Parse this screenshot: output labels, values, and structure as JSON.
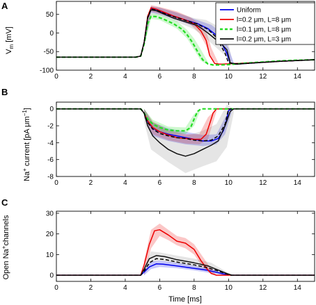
{
  "chart_data": [
    {
      "type": "line",
      "panel_label": "A",
      "ylabel": "V",
      "ylabel_sub": "m",
      "ylabel_unit": " [mV]",
      "xlim": [
        0,
        15
      ],
      "ylim": [
        -100,
        85
      ],
      "xticks": [
        "0",
        "2",
        "4",
        "6",
        "8",
        "10",
        "12",
        "14"
      ],
      "yticks": [
        "-100",
        "-50",
        "0",
        "50"
      ],
      "legend": [
        {
          "name": "Uniform"
        },
        {
          "name": "l=0.2 μm, L=8 μm"
        },
        {
          "name": "l=0.1 μm, L=8 μm"
        },
        {
          "name": "l=0.2 μm, L=3 μm"
        }
      ],
      "series": [
        {
          "name": "Uniform",
          "color": "#0000ee",
          "style": "solid",
          "x": [
            0,
            4.6,
            4.9,
            5.1,
            5.3,
            5.5,
            5.8,
            6.2,
            6.8,
            7.5,
            8.2,
            8.8,
            9.4,
            9.9,
            10.1,
            10.4,
            11,
            12,
            13,
            14,
            15
          ],
          "y": [
            -65,
            -65,
            -62,
            -25,
            40,
            66,
            63,
            55,
            45,
            35,
            25,
            12,
            -10,
            -55,
            -82,
            -84,
            -82,
            -79,
            -76,
            -74,
            -72
          ]
        },
        {
          "name": "l=0.2 μm, L=8 μm",
          "color": "#ee0000",
          "style": "solid",
          "x": [
            0,
            4.6,
            4.9,
            5.1,
            5.3,
            5.5,
            5.8,
            6.2,
            6.8,
            7.5,
            8.0,
            8.4,
            8.7,
            8.9,
            9.2,
            9.5,
            10,
            11,
            12,
            13,
            14,
            15
          ],
          "y": [
            -65,
            -65,
            -62,
            -25,
            45,
            68,
            64,
            57,
            46,
            35,
            25,
            5,
            -20,
            -60,
            -82,
            -84,
            -83,
            -81,
            -79,
            -76,
            -74,
            -72
          ]
        },
        {
          "name": "l=0.1 μm, L=8 μm",
          "color": "#22dd22",
          "style": "dashed",
          "x": [
            0,
            4.6,
            4.9,
            5.1,
            5.3,
            5.5,
            5.8,
            6.2,
            6.8,
            7.3,
            7.6,
            7.9,
            8.2,
            8.5,
            8.8,
            9.1,
            9.5,
            10,
            11,
            12,
            13,
            14,
            15
          ],
          "y": [
            -65,
            -65,
            -62,
            -30,
            25,
            45,
            44,
            38,
            25,
            10,
            -5,
            -25,
            -50,
            -72,
            -83,
            -86,
            -86,
            -85,
            -81,
            -78,
            -75,
            -73,
            -72
          ]
        },
        {
          "name": "l=0.2 μm, L=3 μm",
          "color": "#111111",
          "style": "solid",
          "x": [
            0,
            4.6,
            4.9,
            5.1,
            5.3,
            5.5,
            5.8,
            6.2,
            6.8,
            7.5,
            8.2,
            8.8,
            9.2,
            9.6,
            9.9,
            10.1,
            10.5,
            11,
            12,
            13,
            14,
            15
          ],
          "y": [
            -65,
            -65,
            -62,
            -25,
            40,
            62,
            60,
            52,
            40,
            30,
            20,
            0,
            -15,
            -30,
            -45,
            -80,
            -84,
            -82,
            -79,
            -76,
            -74,
            -72
          ]
        },
        {
          "name": "",
          "color": "#000000",
          "style": "dashed",
          "x": [
            0,
            4.6,
            4.9,
            5.1,
            5.3,
            5.5,
            5.8,
            6.2,
            6.8,
            7.5,
            8.2,
            8.8,
            9.3,
            9.8,
            10.0,
            10.3,
            11,
            12,
            13,
            14,
            15
          ],
          "y": [
            -65,
            -65,
            -62,
            -25,
            42,
            64,
            62,
            54,
            44,
            34,
            24,
            10,
            -12,
            -55,
            -80,
            -83,
            -82,
            -79,
            -76,
            -74,
            -72
          ]
        }
      ],
      "bands": [
        {
          "color": "#0000ee",
          "x": [
            5.1,
            5.5,
            6,
            7,
            8,
            9,
            9.6,
            10,
            10.3
          ],
          "lo": [
            -35,
            55,
            50,
            35,
            18,
            0,
            -30,
            -70,
            -84
          ],
          "hi": [
            -15,
            72,
            68,
            55,
            38,
            22,
            0,
            -40,
            -80
          ]
        },
        {
          "color": "#ee0000",
          "x": [
            5.1,
            5.5,
            6,
            7,
            7.8,
            8.3,
            8.7,
            9,
            9.4
          ],
          "lo": [
            -35,
            58,
            52,
            38,
            22,
            0,
            -35,
            -70,
            -84
          ],
          "hi": [
            -15,
            75,
            70,
            58,
            42,
            25,
            5,
            -40,
            -80
          ]
        },
        {
          "color": "#22dd22",
          "x": [
            5.1,
            5.5,
            6,
            7,
            7.6,
            8,
            8.4,
            8.8
          ],
          "lo": [
            -38,
            38,
            35,
            12,
            -15,
            -45,
            -75,
            -86
          ],
          "hi": [
            -22,
            52,
            50,
            32,
            8,
            -15,
            -45,
            -78
          ]
        },
        {
          "color": "#888888",
          "x": [
            5.1,
            5.5,
            6,
            7,
            8,
            8.7,
            9.3,
            9.9,
            10.2
          ],
          "lo": [
            -35,
            52,
            48,
            30,
            10,
            -15,
            -40,
            -65,
            -84
          ],
          "hi": [
            -15,
            72,
            68,
            55,
            40,
            35,
            20,
            -5,
            -75
          ]
        }
      ]
    },
    {
      "type": "line",
      "panel_label": "B",
      "ylabel": "Na",
      "ylabel_sup": "+",
      "ylabel_rest": " current [pA μm",
      "ylabel_sup2": "−1",
      "ylabel_end": "]",
      "xlim": [
        0,
        15
      ],
      "ylim": [
        -8,
        0.8
      ],
      "xticks": [
        "0",
        "2",
        "4",
        "6",
        "8",
        "10",
        "12",
        "14"
      ],
      "yticks": [
        "-8",
        "-6",
        "-4",
        "-2",
        "0"
      ],
      "series": [
        {
          "name": "Uniform",
          "color": "#0000ee",
          "style": "solid",
          "x": [
            0,
            4.9,
            5.1,
            5.3,
            5.6,
            6,
            6.5,
            7,
            7.5,
            8,
            8.5,
            9,
            9.4,
            9.7,
            9.9,
            10.0,
            10.2,
            15
          ],
          "y": [
            0,
            0,
            -0.5,
            -1.5,
            -2.3,
            -2.7,
            -3.0,
            -3.2,
            -3.4,
            -3.6,
            -3.8,
            -3.8,
            -3.5,
            -2.6,
            -1.2,
            -0.2,
            0,
            0
          ]
        },
        {
          "name": "l=0.2 μm, L=8 μm",
          "color": "#ee0000",
          "style": "solid",
          "x": [
            0,
            4.9,
            5.1,
            5.3,
            5.6,
            6,
            6.5,
            7,
            7.5,
            8,
            8.4,
            8.7,
            8.9,
            9.1,
            9.3,
            15
          ],
          "y": [
            0,
            0,
            -0.5,
            -1.4,
            -2.2,
            -2.7,
            -3.1,
            -3.4,
            -3.5,
            -3.6,
            -3.6,
            -3.0,
            -1.8,
            -0.5,
            0,
            0
          ]
        },
        {
          "name": "l=0.1 μm, L=8 μm",
          "color": "#22dd22",
          "style": "dashed",
          "x": [
            0,
            4.9,
            5.1,
            5.3,
            5.6,
            6,
            6.5,
            7,
            7.5,
            7.8,
            8.0,
            8.2,
            8.4,
            15
          ],
          "y": [
            0,
            0,
            -0.5,
            -1.2,
            -1.8,
            -2.2,
            -2.5,
            -2.6,
            -2.6,
            -2.2,
            -1.2,
            -0.3,
            0,
            0
          ]
        },
        {
          "name": "l=0.2 μm, L=3 μm",
          "color": "#111111",
          "style": "solid",
          "x": [
            0,
            4.9,
            5.1,
            5.3,
            5.6,
            6,
            6.5,
            7,
            7.5,
            8,
            8.5,
            9,
            9.4,
            9.8,
            10.1,
            10.3,
            15
          ],
          "y": [
            0,
            0,
            -0.5,
            -2.0,
            -3.2,
            -4.0,
            -4.8,
            -5.3,
            -5.6,
            -5.3,
            -4.8,
            -4.3,
            -3.8,
            -2.0,
            -0.3,
            0,
            0
          ]
        },
        {
          "name": "",
          "color": "#000000",
          "style": "dashed",
          "x": [
            0,
            4.9,
            5.1,
            5.3,
            5.6,
            6,
            6.5,
            7,
            7.5,
            8,
            8.5,
            9,
            9.4,
            9.8,
            10.0,
            15
          ],
          "y": [
            0,
            0,
            -0.5,
            -1.6,
            -2.4,
            -2.9,
            -3.2,
            -3.4,
            -3.5,
            -3.7,
            -3.8,
            -3.7,
            -3.2,
            -1.8,
            0,
            0
          ]
        }
      ],
      "bands": [
        {
          "color": "#0000ee",
          "x": [
            5.1,
            5.6,
            6.5,
            7.5,
            8.5,
            9.3,
            9.8,
            10.2
          ],
          "lo": [
            -1.0,
            -3.2,
            -3.8,
            -4.2,
            -4.4,
            -4.2,
            -3.0,
            -0.2
          ],
          "hi": [
            0,
            -1.6,
            -2.3,
            -2.7,
            -3.1,
            -3.0,
            -1.0,
            0
          ]
        },
        {
          "color": "#ee0000",
          "x": [
            5.1,
            5.6,
            6.5,
            7.5,
            8.3,
            8.8,
            9.3
          ],
          "lo": [
            -1.0,
            -3.0,
            -3.7,
            -4.1,
            -4.2,
            -3.6,
            -0.3
          ],
          "hi": [
            0,
            -1.5,
            -2.5,
            -3.0,
            -3.0,
            -1.0,
            0
          ]
        },
        {
          "color": "#22dd22",
          "x": [
            5.1,
            5.6,
            6.5,
            7.5,
            8.0,
            8.4
          ],
          "lo": [
            -0.8,
            -2.3,
            -2.9,
            -3.0,
            -2.0,
            0
          ],
          "hi": [
            0,
            -1.3,
            -2.1,
            -2.2,
            -0.6,
            0
          ]
        },
        {
          "color": "#888888",
          "x": [
            5.1,
            5.5,
            6.5,
            7.5,
            8.5,
            9.3,
            9.9,
            10.3
          ],
          "lo": [
            -1.5,
            -4.8,
            -6.3,
            -7.6,
            -6.8,
            -6.2,
            -4.5,
            -0.5
          ],
          "hi": [
            0,
            -1.5,
            -2.8,
            -3.2,
            -2.6,
            -1.8,
            0.5,
            0
          ]
        }
      ]
    },
    {
      "type": "line",
      "panel_label": "C",
      "ylabel": "Open Na",
      "ylabel_sup": "+",
      "ylabel_rest": "channels",
      "xlabel": "Time [ms]",
      "xlim": [
        0,
        15
      ],
      "ylim": [
        -3,
        31
      ],
      "xticks": [
        "0",
        "2",
        "4",
        "6",
        "8",
        "10",
        "12",
        "14"
      ],
      "yticks": [
        "0",
        "10",
        "20",
        "30"
      ],
      "series": [
        {
          "name": "Uniform",
          "color": "#0000ee",
          "style": "solid",
          "x": [
            0,
            4.9,
            5.1,
            5.4,
            5.8,
            6.2,
            7,
            8,
            8.7,
            9.2,
            9.6,
            10.0,
            10.2,
            15
          ],
          "y": [
            0,
            0,
            1.5,
            4.0,
            5.5,
            5.3,
            4.5,
            3.3,
            2.5,
            1.6,
            0.8,
            0.2,
            0,
            0
          ]
        },
        {
          "name": "l=0.2 μm, L=8 μm",
          "color": "#ee0000",
          "style": "solid",
          "x": [
            0,
            4.9,
            5.1,
            5.4,
            5.7,
            6.0,
            6.5,
            7,
            7.5,
            8.0,
            8.4,
            8.8,
            9.0,
            9.3,
            15
          ],
          "y": [
            0,
            0,
            5,
            15,
            21.5,
            22,
            19.5,
            16.5,
            15.5,
            12.5,
            7,
            2.5,
            0.8,
            0,
            0
          ]
        },
        {
          "name": "",
          "color": "#000000",
          "style": "dashed",
          "x": [
            0,
            4.9,
            5.1,
            5.4,
            5.8,
            6.3,
            7,
            8,
            8.8,
            9.4,
            9.9,
            10.1,
            15
          ],
          "y": [
            0,
            0,
            2,
            6,
            8,
            7.6,
            6.4,
            5,
            3.6,
            2,
            0.6,
            0,
            0
          ]
        },
        {
          "name": "l=0.2 μm, L=3 μm",
          "color": "#111111",
          "style": "solid",
          "x": [
            0,
            4.9,
            5.1,
            5.4,
            5.8,
            6.3,
            7,
            8,
            8.8,
            9.4,
            9.9,
            10.2,
            15
          ],
          "y": [
            0,
            0,
            3,
            8,
            9.5,
            9.0,
            7.5,
            6.0,
            4.5,
            2.5,
            0.8,
            0,
            0
          ]
        }
      ],
      "bands": [
        {
          "color": "#888888",
          "x": [
            5.1,
            5.5,
            6,
            7,
            8,
            9,
            9.8,
            10.2
          ],
          "lo": [
            0,
            6,
            7,
            5.5,
            4,
            1.5,
            0,
            0
          ],
          "hi": [
            4,
            11.5,
            11,
            9.5,
            8,
            6,
            2,
            0
          ]
        },
        {
          "color": "#0000ee",
          "x": [
            5.1,
            5.5,
            6,
            7,
            8,
            9,
            9.8,
            10.2
          ],
          "lo": [
            0,
            3,
            4,
            3.4,
            2.3,
            1,
            0,
            0
          ],
          "hi": [
            2.5,
            6.5,
            7,
            6,
            4.5,
            3,
            1,
            0
          ]
        },
        {
          "color": "#ee0000",
          "x": [
            5.1,
            5.5,
            6,
            6.5,
            7,
            7.5,
            8,
            8.5,
            9,
            9.3
          ],
          "lo": [
            0,
            13,
            19,
            17,
            14.5,
            13,
            10,
            4,
            0.5,
            0
          ],
          "hi": [
            7,
            22,
            25,
            22,
            19,
            18,
            15,
            9,
            3,
            0
          ]
        }
      ]
    }
  ]
}
